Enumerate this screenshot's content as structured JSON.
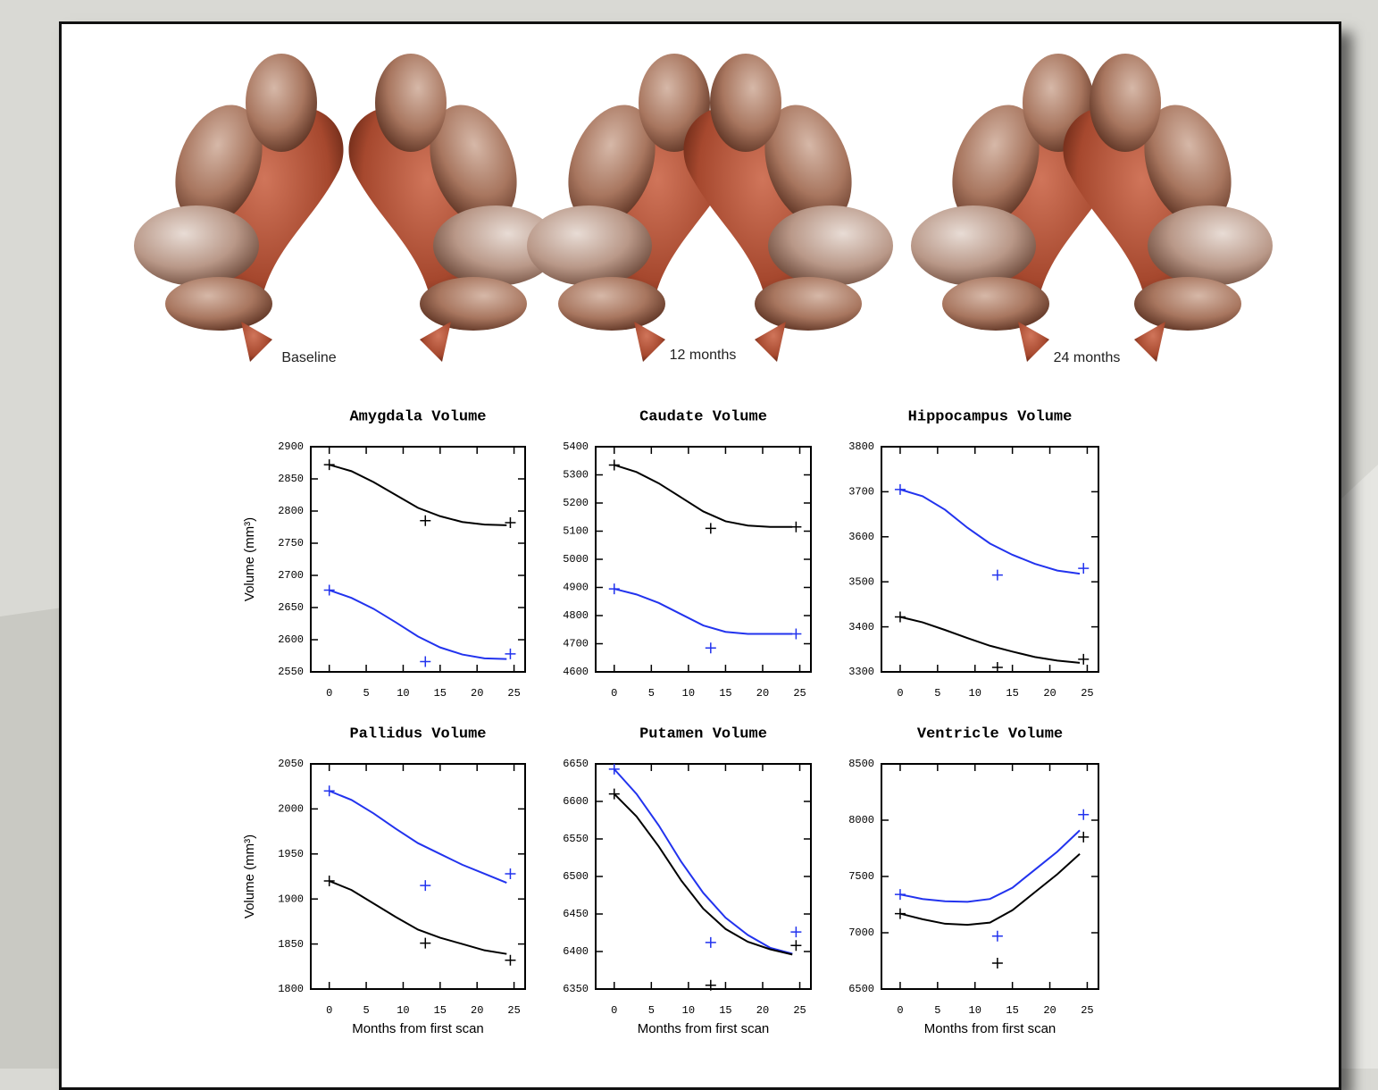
{
  "images": [
    {
      "label": "Baseline"
    },
    {
      "label": "12 months"
    },
    {
      "label": "24 months"
    }
  ],
  "chart_data": [
    {
      "type": "line",
      "title": "Amygdala Volume",
      "ylabel": "Volume (mm³)",
      "x": [
        0,
        3,
        6,
        9,
        12,
        15,
        18,
        21,
        24
      ],
      "points_x": [
        0,
        13,
        24.5
      ],
      "marker": "+",
      "series": [
        {
          "color": "#000000",
          "values": [
            2872,
            2862,
            2845,
            2825,
            2805,
            2792,
            2783,
            2779,
            2778
          ],
          "points": [
            2872,
            2785,
            2782
          ]
        },
        {
          "color": "#2233ee",
          "values": [
            2677,
            2665,
            2648,
            2627,
            2605,
            2588,
            2577,
            2571,
            2570
          ],
          "points": [
            2677,
            2566,
            2578
          ]
        }
      ],
      "xlim": [
        -2.5,
        26.5
      ],
      "xticks": [
        0,
        5,
        10,
        15,
        20,
        25
      ],
      "ylim": [
        2550,
        2900
      ],
      "yticks": [
        2550,
        2600,
        2650,
        2700,
        2750,
        2800,
        2850,
        2900
      ]
    },
    {
      "type": "line",
      "title": "Caudate Volume",
      "x": [
        0,
        3,
        6,
        9,
        12,
        15,
        18,
        21,
        24
      ],
      "points_x": [
        0,
        13,
        24.5
      ],
      "marker": "+",
      "series": [
        {
          "color": "#000000",
          "values": [
            5335,
            5310,
            5270,
            5220,
            5170,
            5135,
            5120,
            5115,
            5115
          ],
          "points": [
            5335,
            5110,
            5115
          ]
        },
        {
          "color": "#2233ee",
          "values": [
            4895,
            4875,
            4845,
            4805,
            4765,
            4742,
            4735,
            4735,
            4735
          ],
          "points": [
            4895,
            4685,
            4735
          ]
        }
      ],
      "xlim": [
        -2.5,
        26.5
      ],
      "xticks": [
        0,
        5,
        10,
        15,
        20,
        25
      ],
      "ylim": [
        4600,
        5400
      ],
      "yticks": [
        4600,
        4700,
        4800,
        4900,
        5000,
        5100,
        5200,
        5300,
        5400
      ]
    },
    {
      "type": "line",
      "title": "Hippocampus Volume",
      "x": [
        0,
        3,
        6,
        9,
        12,
        15,
        18,
        21,
        24
      ],
      "points_x": [
        0,
        13,
        24.5
      ],
      "marker": "+",
      "series": [
        {
          "color": "#2233ee",
          "values": [
            3705,
            3690,
            3660,
            3620,
            3585,
            3560,
            3540,
            3525,
            3518
          ],
          "points": [
            3705,
            3515,
            3530
          ]
        },
        {
          "color": "#000000",
          "values": [
            3422,
            3410,
            3393,
            3375,
            3358,
            3345,
            3333,
            3325,
            3320
          ],
          "points": [
            3422,
            3310,
            3328
          ]
        }
      ],
      "xlim": [
        -2.5,
        26.5
      ],
      "xticks": [
        0,
        5,
        10,
        15,
        20,
        25
      ],
      "ylim": [
        3300,
        3800
      ],
      "yticks": [
        3300,
        3400,
        3500,
        3600,
        3700,
        3800
      ]
    },
    {
      "type": "line",
      "title": "Pallidus Volume",
      "ylabel": "Volume (mm³)",
      "xlabel": "Months from first scan",
      "x": [
        0,
        3,
        6,
        9,
        12,
        15,
        18,
        21,
        24
      ],
      "points_x": [
        0,
        13,
        24.5
      ],
      "marker": "+",
      "series": [
        {
          "color": "#2233ee",
          "values": [
            2020,
            2010,
            1995,
            1978,
            1962,
            1950,
            1938,
            1928,
            1918
          ],
          "points": [
            2020,
            1915,
            1928
          ]
        },
        {
          "color": "#000000",
          "values": [
            1920,
            1910,
            1895,
            1880,
            1866,
            1857,
            1850,
            1843,
            1839
          ],
          "points": [
            1920,
            1851,
            1832
          ]
        }
      ],
      "xlim": [
        -2.5,
        26.5
      ],
      "xticks": [
        0,
        5,
        10,
        15,
        20,
        25
      ],
      "ylim": [
        1800,
        2050
      ],
      "yticks": [
        1800,
        1850,
        1900,
        1950,
        2000,
        2050
      ]
    },
    {
      "type": "line",
      "title": "Putamen Volume",
      "xlabel": "Months from first scan",
      "x": [
        0,
        3,
        6,
        9,
        12,
        15,
        18,
        21,
        24
      ],
      "points_x": [
        0,
        13,
        24.5
      ],
      "marker": "+",
      "series": [
        {
          "color": "#2233ee",
          "values": [
            6643,
            6610,
            6568,
            6520,
            6478,
            6445,
            6422,
            6405,
            6397
          ],
          "points": [
            6643,
            6412,
            6426
          ]
        },
        {
          "color": "#000000",
          "values": [
            6610,
            6580,
            6540,
            6495,
            6457,
            6430,
            6413,
            6403,
            6396
          ],
          "points": [
            6610,
            6355,
            6408
          ]
        }
      ],
      "xlim": [
        -2.5,
        26.5
      ],
      "xticks": [
        0,
        5,
        10,
        15,
        20,
        25
      ],
      "ylim": [
        6350,
        6650
      ],
      "yticks": [
        6350,
        6400,
        6450,
        6500,
        6550,
        6600,
        6650
      ]
    },
    {
      "type": "line",
      "title": "Ventricle Volume",
      "xlabel": "Months from first scan",
      "x": [
        0,
        3,
        6,
        9,
        12,
        15,
        18,
        21,
        24
      ],
      "points_x": [
        0,
        13,
        24.5
      ],
      "marker": "+",
      "series": [
        {
          "color": "#2233ee",
          "values": [
            7340,
            7300,
            7280,
            7275,
            7300,
            7400,
            7560,
            7720,
            7910
          ],
          "points": [
            7340,
            6970,
            8050
          ]
        },
        {
          "color": "#000000",
          "values": [
            7170,
            7120,
            7080,
            7070,
            7090,
            7200,
            7360,
            7520,
            7700
          ],
          "points": [
            7170,
            6730,
            7850
          ]
        }
      ],
      "xlim": [
        -2.5,
        26.5
      ],
      "xticks": [
        0,
        5,
        10,
        15,
        20,
        25
      ],
      "ylim": [
        6500,
        8500
      ],
      "yticks": [
        6500,
        7000,
        7500,
        8000,
        8500
      ]
    }
  ]
}
